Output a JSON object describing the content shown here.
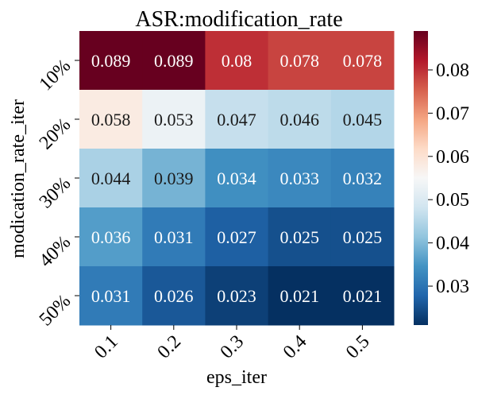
{
  "chart_data": {
    "type": "heatmap",
    "title": "ASR:modification_rate",
    "xlabel": "eps_iter",
    "ylabel": "modication_rate_iter",
    "x_categories": [
      "0.1",
      "0.2",
      "0.3",
      "0.4",
      "0.5"
    ],
    "y_categories": [
      "10%",
      "20%",
      "30%",
      "40%",
      "50%"
    ],
    "values": [
      [
        0.089,
        0.089,
        0.08,
        0.078,
        0.078
      ],
      [
        0.058,
        0.053,
        0.047,
        0.046,
        0.045
      ],
      [
        0.044,
        0.039,
        0.034,
        0.033,
        0.032
      ],
      [
        0.036,
        0.031,
        0.027,
        0.025,
        0.025
      ],
      [
        0.031,
        0.026,
        0.023,
        0.021,
        0.021
      ]
    ],
    "colormap": "RdBu_r",
    "vmin": 0.021,
    "vmax": 0.089,
    "colorbar_ticks": [
      0.03,
      0.04,
      0.05,
      0.06,
      0.07,
      0.08
    ],
    "colorbar_tick_labels": [
      "0.03",
      "0.04",
      "0.05",
      "0.06",
      "0.07",
      "0.08"
    ],
    "colormap_stops": [
      "#053061",
      "#2166ac",
      "#4393c3",
      "#92c5de",
      "#d1e5f0",
      "#f7f7f7",
      "#fddbc7",
      "#f4a582",
      "#d6604d",
      "#b2182b",
      "#67001f"
    ]
  }
}
